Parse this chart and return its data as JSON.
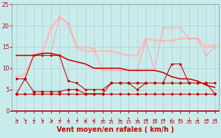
{
  "background_color": "#c8ecec",
  "grid_color": "#b0cccc",
  "xlabel": "Vent moyen/en rafales ( km/h )",
  "xlabel_color": "#cc0000",
  "xlabel_fontsize": 7,
  "tick_color": "#cc0000",
  "ylim": [
    0,
    25
  ],
  "xlim": [
    -0.5,
    23.5
  ],
  "yticks": [
    0,
    5,
    10,
    15,
    20,
    25
  ],
  "xticks": [
    0,
    1,
    2,
    3,
    4,
    5,
    6,
    7,
    8,
    9,
    10,
    11,
    12,
    13,
    14,
    15,
    16,
    17,
    18,
    19,
    20,
    21,
    22,
    23
  ],
  "series": [
    {
      "y": [
        7.5,
        7.5,
        13,
        13,
        13,
        13,
        7,
        6.5,
        5,
        5,
        5,
        6.5,
        6.5,
        6.5,
        5,
        6.5,
        6.5,
        6.5,
        11,
        11,
        6.5,
        6.5,
        6.5,
        6.5
      ],
      "color": "#cc0000",
      "lw": 0.8,
      "marker": "s",
      "ms": 2.0,
      "zorder": 4
    },
    {
      "y": [
        4,
        7.5,
        4.5,
        4.5,
        4.5,
        4.5,
        5,
        5,
        4,
        4,
        4,
        6.5,
        6.5,
        6.5,
        6.5,
        6.5,
        6.5,
        6.5,
        6.5,
        6.5,
        6.5,
        6.5,
        6.5,
        4
      ],
      "color": "#cc0000",
      "lw": 0.8,
      "marker": "D",
      "ms": 1.8,
      "zorder": 4
    },
    {
      "y": [
        4,
        4,
        4,
        4,
        4,
        4,
        4,
        4,
        4,
        4,
        4,
        4,
        4,
        4,
        4,
        4,
        4,
        4,
        4,
        4,
        4,
        4,
        4,
        4
      ],
      "color": "#cc0000",
      "lw": 0.8,
      "marker": "o",
      "ms": 1.8,
      "zorder": 4
    },
    {
      "y": [
        13,
        13,
        13,
        13.5,
        13.5,
        22,
        20.5,
        15,
        15,
        14.5,
        9.5,
        9.5,
        9.5,
        9.5,
        9.5,
        16.5,
        9.5,
        19.5,
        19.5,
        19.5,
        17,
        17,
        13,
        15
      ],
      "color": "#ffaaaa",
      "lw": 0.9,
      "marker": "+",
      "ms": 3.5,
      "zorder": 3
    },
    {
      "y": [
        8,
        8.5,
        13,
        13.5,
        19.5,
        22,
        20.5,
        15,
        14,
        14,
        14,
        14,
        13.5,
        13,
        13,
        17,
        16.5,
        16.5,
        16.5,
        17,
        17,
        17,
        15,
        15.5
      ],
      "color": "#ffbbbb",
      "lw": 1.8,
      "marker": "o",
      "ms": 2.0,
      "zorder": 2
    },
    {
      "y": [
        13,
        13,
        13,
        13.5,
        13.5,
        13,
        12,
        11.5,
        11,
        10,
        10,
        10,
        10,
        9.5,
        9.5,
        9.5,
        9.5,
        9,
        8,
        7.5,
        7.5,
        7,
        6,
        5.5
      ],
      "color": "#cc0000",
      "lw": 1.2,
      "marker": "None",
      "ms": 0,
      "zorder": 3
    }
  ],
  "arrows": [
    "↘",
    "↘",
    "↓",
    "↘",
    "↘",
    "↓",
    "↓",
    "↓",
    "↙",
    "↙",
    "↓",
    "↓",
    "↘",
    "↑",
    "↓",
    "→",
    "→",
    "→",
    "↙",
    "←",
    "↓",
    "↓",
    "→",
    "→"
  ]
}
